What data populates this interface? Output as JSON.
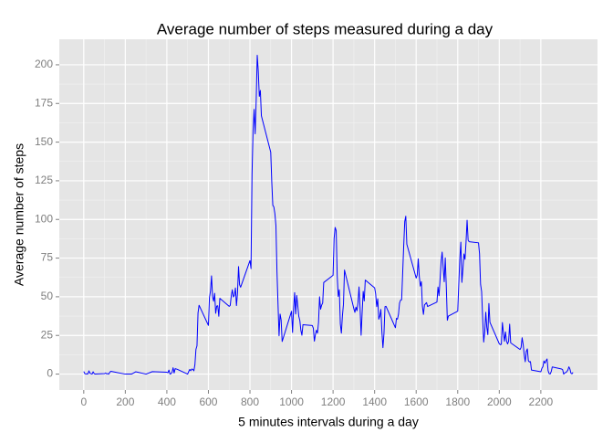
{
  "chart_data": {
    "type": "line",
    "title": "Average number of steps measured during a day",
    "x_label": "5 minutes intervals during a day",
    "y_label": "Average number of steps",
    "color": "#0000ff",
    "grid": true,
    "xlim": [
      -117.75,
      2472.75
    ],
    "ylim": [
      -10.3,
      216.5
    ],
    "xticks": [
      0,
      200,
      400,
      600,
      800,
      1000,
      1200,
      1400,
      1600,
      1800,
      2000,
      2200
    ],
    "yticks": [
      0,
      25,
      50,
      75,
      100,
      125,
      150,
      175,
      200
    ],
    "x": [
      0,
      5,
      10,
      15,
      20,
      25,
      30,
      40,
      45,
      50,
      55,
      100,
      105,
      110,
      115,
      120,
      125,
      130,
      200,
      230,
      250,
      300,
      330,
      400,
      405,
      410,
      415,
      420,
      425,
      430,
      435,
      440,
      450,
      500,
      505,
      510,
      515,
      520,
      525,
      530,
      535,
      540,
      545,
      550,
      555,
      600,
      605,
      610,
      615,
      620,
      625,
      630,
      635,
      640,
      645,
      650,
      655,
      700,
      705,
      710,
      715,
      720,
      725,
      730,
      735,
      740,
      745,
      750,
      755,
      800,
      805,
      810,
      815,
      820,
      825,
      830,
      835,
      840,
      845,
      850,
      855,
      900,
      905,
      910,
      915,
      920,
      925,
      930,
      935,
      940,
      945,
      950,
      955,
      1000,
      1005,
      1010,
      1015,
      1020,
      1025,
      1030,
      1035,
      1040,
      1045,
      1050,
      1055,
      1100,
      1105,
      1110,
      1115,
      1120,
      1125,
      1130,
      1135,
      1140,
      1145,
      1150,
      1155,
      1200,
      1205,
      1210,
      1215,
      1220,
      1225,
      1230,
      1235,
      1240,
      1245,
      1250,
      1255,
      1300,
      1305,
      1310,
      1315,
      1320,
      1325,
      1330,
      1335,
      1340,
      1345,
      1350,
      1355,
      1400,
      1405,
      1410,
      1415,
      1420,
      1425,
      1430,
      1435,
      1440,
      1445,
      1450,
      1455,
      1500,
      1505,
      1510,
      1515,
      1520,
      1525,
      1530,
      1535,
      1540,
      1545,
      1550,
      1555,
      1600,
      1605,
      1610,
      1615,
      1620,
      1625,
      1630,
      1635,
      1640,
      1645,
      1650,
      1655,
      1700,
      1705,
      1710,
      1715,
      1720,
      1725,
      1730,
      1735,
      1740,
      1745,
      1750,
      1755,
      1800,
      1805,
      1810,
      1815,
      1820,
      1825,
      1830,
      1835,
      1840,
      1845,
      1850,
      1855,
      1900,
      1905,
      1910,
      1915,
      1920,
      1925,
      1930,
      1935,
      1940,
      1945,
      1950,
      1955,
      2000,
      2005,
      2010,
      2015,
      2020,
      2025,
      2030,
      2035,
      2040,
      2045,
      2050,
      2055,
      2100,
      2105,
      2110,
      2115,
      2120,
      2125,
      2130,
      2135,
      2140,
      2145,
      2150,
      2155,
      2200,
      2205,
      2210,
      2215,
      2220,
      2225,
      2230,
      2235,
      2240,
      2245,
      2250,
      2255,
      2300,
      2305,
      2310,
      2315,
      2320,
      2325,
      2330,
      2335,
      2340,
      2345,
      2350,
      2355
    ],
    "values": [
      1.7,
      0.3,
      0.1,
      0.2,
      0.1,
      2.1,
      0.5,
      0,
      1.5,
      0.3,
      0,
      0.3,
      0.7,
      0.2,
      0.3,
      0,
      1.1,
      1.8,
      0,
      0,
      1.5,
      0,
      1.6,
      1.2,
      0.9,
      2.6,
      0,
      0.3,
      1.1,
      4.1,
      0.7,
      3.5,
      3.1,
      0,
      1.6,
      3.0,
      2.2,
      3.3,
      3.0,
      2.1,
      6.1,
      16.0,
      18.3,
      39.5,
      44.5,
      31.5,
      49.3,
      53.8,
      63.5,
      50,
      47.1,
      52.2,
      39.3,
      44.0,
      44.2,
      37.4,
      49.0,
      43.8,
      44.4,
      50.5,
      54.5,
      49.9,
      50.9,
      55.7,
      44.3,
      52.3,
      69.5,
      57.8,
      56.2,
      73.4,
      68.2,
      129.4,
      157.5,
      171.2,
      155.4,
      177.3,
      206.2,
      195.9,
      179.6,
      183.4,
      167.0,
      143.5,
      124.0,
      109.1,
      108.1,
      103.7,
      95.96,
      66.2,
      45.2,
      24.8,
      38.8,
      35.0,
      21.1,
      40.6,
      26.9,
      42.4,
      52.7,
      38.9,
      50.8,
      44.3,
      37.4,
      34.7,
      28.3,
      25.1,
      31.9,
      31.4,
      29.7,
      21.3,
      25.5,
      28.4,
      26.5,
      33.4,
      50.0,
      42.0,
      44.6,
      46.0,
      59.2,
      63.9,
      87.7,
      94.8,
      92.8,
      63.4,
      50.2,
      54.5,
      32.4,
      26.5,
      37.7,
      45.1,
      67.3,
      42.3,
      39.9,
      43.3,
      40.98,
      46.2,
      56.4,
      42.8,
      25.1,
      39.97,
      53.5,
      47.3,
      60.8,
      55.8,
      51.9,
      43.6,
      48.7,
      35.5,
      37.5,
      41.8,
      27.5,
      17.1,
      26.1,
      43.6,
      43.8,
      30.0,
      36.1,
      35.5,
      38.8,
      45.96,
      47.8,
      48.1,
      65.3,
      82.9,
      98.7,
      102.1,
      83.96,
      62.1,
      64.1,
      74.5,
      63.2,
      56.9,
      59.8,
      43.9,
      38.6,
      44.7,
      45.5,
      46.2,
      43.7,
      46.6,
      56.3,
      50.7,
      61.2,
      72.7,
      78.9,
      68.9,
      59.7,
      75.1,
      56.5,
      34.8,
      37.5,
      40.7,
      58.0,
      74.7,
      85.3,
      59.3,
      67.8,
      77.7,
      74.2,
      85.3,
      99.5,
      86.6,
      85.6,
      84.9,
      77.8,
      58.0,
      53.4,
      36.3,
      20.7,
      27.4,
      40.0,
      30.2,
      25.5,
      45.7,
      33.5,
      19.6,
      19.0,
      19.3,
      33.3,
      26.8,
      21.2,
      27.3,
      21.3,
      19.5,
      21.3,
      32.3,
      20.2,
      15.9,
      17.2,
      23.5,
      19.2,
      12.5,
      8.0,
      14.7,
      16.3,
      8.7,
      7.8,
      8.1,
      2.6,
      1.5,
      3.7,
      4.8,
      8.5,
      7.1,
      8.7,
      9.8,
      2.2,
      0.3,
      0.1,
      1.6,
      4.6,
      3.3,
      2.8,
      0,
      0.8,
      1.0,
      1.6,
      2.6,
      4.7,
      3.3,
      0.6,
      0.2,
      1.1
    ]
  }
}
